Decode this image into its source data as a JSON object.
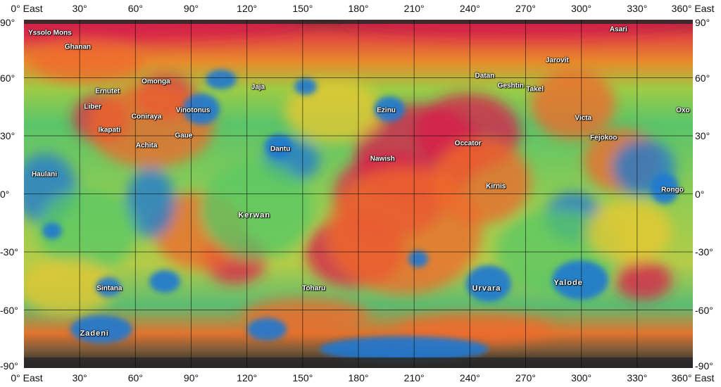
{
  "map": {
    "colors": {
      "high": "#d81e4a",
      "upper": "#ee6a2a",
      "mid": "#e8c832",
      "lower": "#58c864",
      "low": "#1e78d2",
      "cap": "#2a2a2a"
    }
  },
  "axes": {
    "x_ticks": [
      "0° East",
      "30°",
      "60°",
      "90°",
      "120°",
      "150°",
      "180°",
      "210°",
      "240°",
      "270°",
      "300°",
      "330°",
      "360° East"
    ],
    "y_ticks": [
      "90°",
      "60°",
      "30°",
      "0°",
      "-30°",
      "-60°",
      "-90°"
    ]
  },
  "features": [
    {
      "name": "Yssolo Mons",
      "lon": 14,
      "lat": 83
    },
    {
      "name": "Ghanan",
      "lon": 29,
      "lat": 76
    },
    {
      "name": "Omonga",
      "lon": 71,
      "lat": 58
    },
    {
      "name": "Ernutet",
      "lon": 45,
      "lat": 53
    },
    {
      "name": "Liber",
      "lon": 37,
      "lat": 45
    },
    {
      "name": "Coniraya",
      "lon": 66,
      "lat": 40
    },
    {
      "name": "Vinotonus",
      "lon": 91,
      "lat": 43
    },
    {
      "name": "Jaja",
      "lon": 126,
      "lat": 55
    },
    {
      "name": "Ikapati",
      "lon": 46,
      "lat": 33
    },
    {
      "name": "Gaue",
      "lon": 86,
      "lat": 30
    },
    {
      "name": "Achita",
      "lon": 66,
      "lat": 25
    },
    {
      "name": "Dantu",
      "lon": 138,
      "lat": 23
    },
    {
      "name": "Haulani",
      "lon": 11,
      "lat": 10
    },
    {
      "name": "Kerwan",
      "lon": 124,
      "lat": -11,
      "large": true
    },
    {
      "name": "Ezinu",
      "lon": 195,
      "lat": 43
    },
    {
      "name": "Nawish",
      "lon": 193,
      "lat": 18
    },
    {
      "name": "Occator",
      "lon": 239,
      "lat": 26
    },
    {
      "name": "Datan",
      "lon": 248,
      "lat": 61
    },
    {
      "name": "Geshtin",
      "lon": 262,
      "lat": 56
    },
    {
      "name": "Takel",
      "lon": 275,
      "lat": 54
    },
    {
      "name": "Jarovit",
      "lon": 287,
      "lat": 69
    },
    {
      "name": "Asari",
      "lon": 320,
      "lat": 85
    },
    {
      "name": "Victa",
      "lon": 301,
      "lat": 39
    },
    {
      "name": "Fejokoo",
      "lon": 312,
      "lat": 29
    },
    {
      "name": "Oxo",
      "lon": 359,
      "lat": 43
    },
    {
      "name": "Kirnis",
      "lon": 254,
      "lat": 4
    },
    {
      "name": "Rongo",
      "lon": 349,
      "lat": 2
    },
    {
      "name": "Toharu",
      "lon": 156,
      "lat": -49
    },
    {
      "name": "Urvara",
      "lon": 249,
      "lat": -49,
      "large": true
    },
    {
      "name": "Yalode",
      "lon": 293,
      "lat": -46,
      "large": true
    },
    {
      "name": "Sintana",
      "lon": 46,
      "lat": -49
    },
    {
      "name": "Zadeni",
      "lon": 38,
      "lat": -72,
      "large": true
    }
  ]
}
